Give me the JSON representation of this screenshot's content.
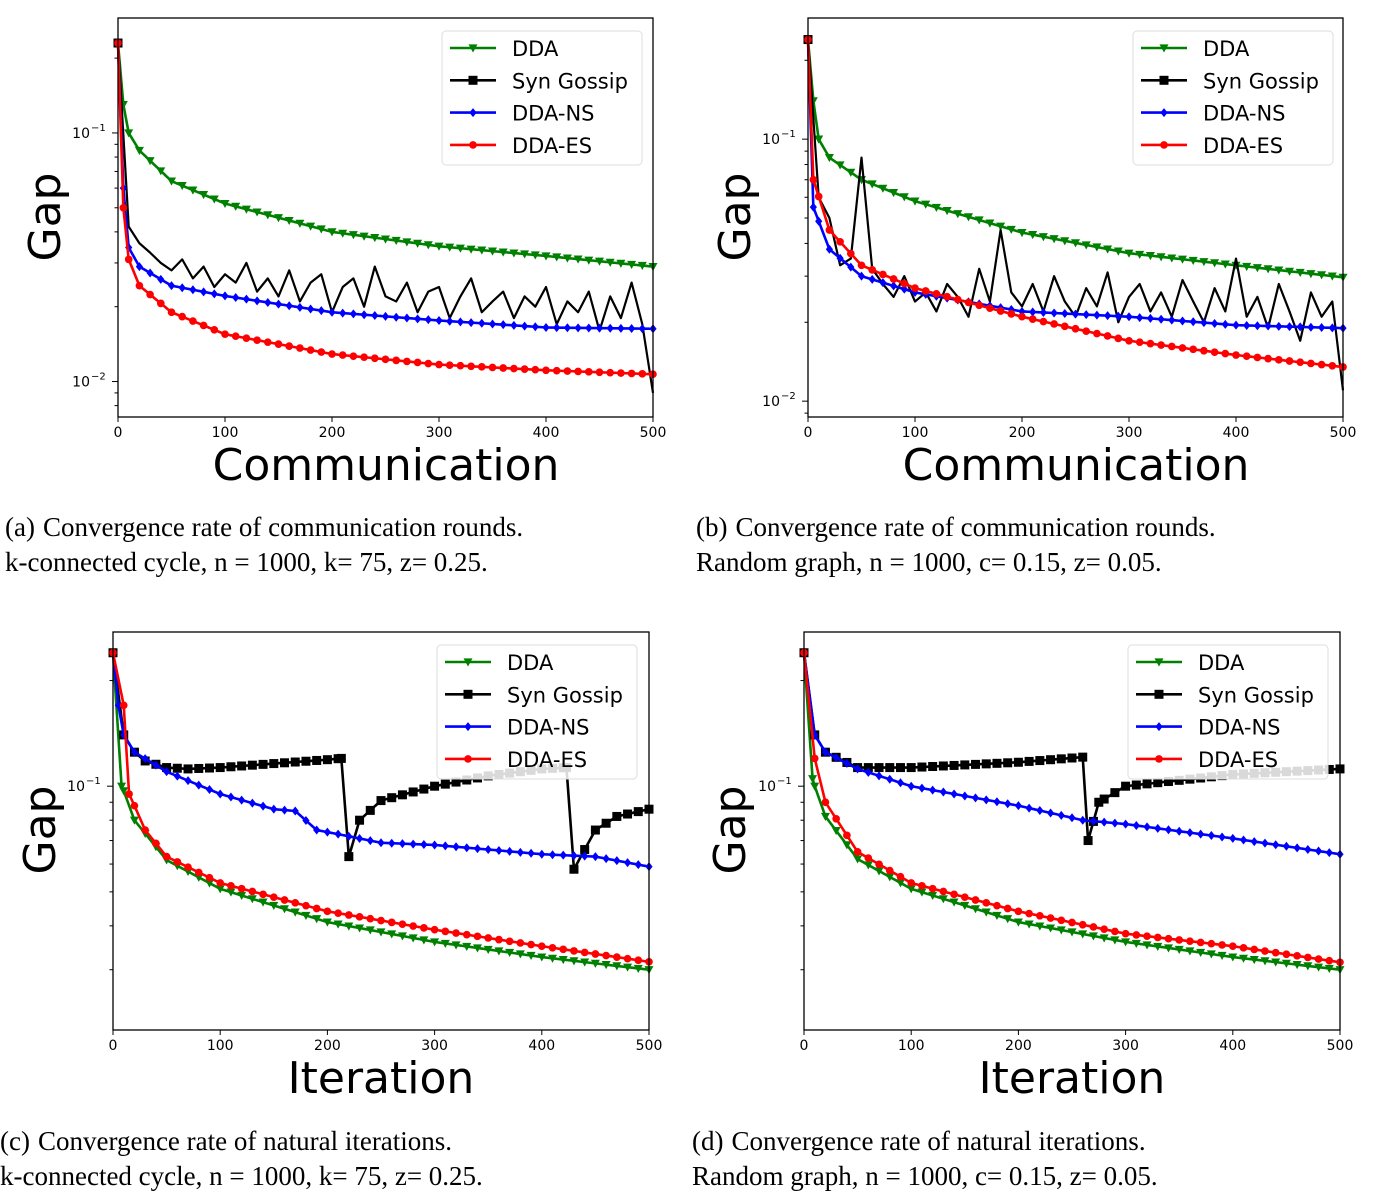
{
  "chart_data": [
    {
      "id": "a",
      "type": "line",
      "xlabel": "Communication",
      "ylabel": "Gap",
      "xlim": [
        0,
        500
      ],
      "ylim": [
        0.0072,
        0.29
      ],
      "yscale": "log",
      "xticks": [
        0,
        100,
        200,
        300,
        400,
        500
      ],
      "yticks": [
        {
          "base": "10",
          "exp": "−1",
          "value": 0.1
        },
        {
          "base": "10",
          "exp": "−2",
          "value": 0.01
        }
      ],
      "grid": false,
      "legend": "top-right",
      "caption": {
        "label": "(a)",
        "line1": "Convergence rate of communication rounds.",
        "line2": "k-connected cycle, n = 1000, k= 75, z= 0.25."
      },
      "series": [
        {
          "name": "DDA",
          "color": "#008000",
          "marker": "triangle-down",
          "x": [
            0,
            5,
            10,
            20,
            50,
            100,
            200,
            300,
            400,
            500
          ],
          "y": [
            0.23,
            0.13,
            0.1,
            0.085,
            0.064,
            0.052,
            0.04,
            0.035,
            0.032,
            0.029
          ]
        },
        {
          "name": "Syn Gossip",
          "color": "#000000",
          "marker": "square",
          "noisy": true,
          "x": [
            0,
            10,
            20,
            30,
            40,
            50,
            60,
            70,
            80,
            90,
            100,
            110,
            120,
            130,
            140,
            150,
            160,
            170,
            180,
            190,
            200,
            210,
            220,
            230,
            240,
            250,
            260,
            270,
            280,
            290,
            300,
            310,
            320,
            330,
            340,
            350,
            360,
            370,
            380,
            390,
            400,
            410,
            420,
            430,
            440,
            450,
            460,
            470,
            480,
            490,
            500
          ],
          "y": [
            0.23,
            0.042,
            0.036,
            0.033,
            0.03,
            0.028,
            0.031,
            0.026,
            0.029,
            0.024,
            0.027,
            0.025,
            0.03,
            0.023,
            0.026,
            0.022,
            0.028,
            0.021,
            0.025,
            0.027,
            0.019,
            0.024,
            0.026,
            0.02,
            0.029,
            0.022,
            0.021,
            0.025,
            0.019,
            0.023,
            0.024,
            0.018,
            0.022,
            0.026,
            0.019,
            0.021,
            0.023,
            0.018,
            0.022,
            0.02,
            0.024,
            0.017,
            0.021,
            0.019,
            0.023,
            0.016,
            0.022,
            0.018,
            0.025,
            0.017,
            0.009
          ]
        },
        {
          "name": "DDA-NS",
          "color": "#0000ff",
          "marker": "diamond",
          "x": [
            0,
            5,
            10,
            20,
            50,
            100,
            200,
            300,
            400,
            500
          ],
          "y": [
            0.23,
            0.06,
            0.0346,
            0.029,
            0.0243,
            0.0221,
            0.019,
            0.0176,
            0.0165,
            0.0163
          ]
        },
        {
          "name": "DDA-ES",
          "color": "#ff0000",
          "marker": "circle",
          "x": [
            0,
            5,
            10,
            20,
            50,
            100,
            200,
            300,
            400,
            500
          ],
          "y": [
            0.23,
            0.05,
            0.031,
            0.0243,
            0.019,
            0.0155,
            0.0129,
            0.0117,
            0.0111,
            0.0107
          ]
        }
      ]
    },
    {
      "id": "b",
      "type": "line",
      "xlabel": "Communication",
      "ylabel": "Gap",
      "xlim": [
        0,
        500
      ],
      "ylim": [
        0.0087,
        0.29
      ],
      "yscale": "log",
      "xticks": [
        0,
        100,
        200,
        300,
        400,
        500
      ],
      "yticks": [
        {
          "base": "10",
          "exp": "−1",
          "value": 0.1
        },
        {
          "base": "10",
          "exp": "−2",
          "value": 0.01
        }
      ],
      "grid": false,
      "legend": "top-right",
      "caption": {
        "label": "(b)",
        "line1": "Convergence rate of communication rounds.",
        "line2": "Random graph, n = 1000, c= 0.15, z= 0.05."
      },
      "series": [
        {
          "name": "DDA",
          "color": "#008000",
          "marker": "triangle-down",
          "x": [
            0,
            5,
            10,
            20,
            50,
            100,
            200,
            300,
            400,
            500
          ],
          "y": [
            0.24,
            0.14,
            0.1,
            0.085,
            0.07,
            0.058,
            0.044,
            0.0367,
            0.033,
            0.0297
          ]
        },
        {
          "name": "Syn Gossip",
          "color": "#000000",
          "marker": "square",
          "noisy": true,
          "x": [
            0,
            10,
            20,
            30,
            40,
            50,
            60,
            70,
            80,
            90,
            100,
            110,
            120,
            130,
            140,
            150,
            160,
            170,
            180,
            190,
            200,
            210,
            220,
            230,
            240,
            250,
            260,
            270,
            280,
            290,
            300,
            310,
            320,
            330,
            340,
            350,
            360,
            370,
            380,
            390,
            400,
            410,
            420,
            430,
            440,
            450,
            460,
            470,
            480,
            490,
            500
          ],
          "y": [
            0.24,
            0.06,
            0.05,
            0.033,
            0.035,
            0.085,
            0.032,
            0.028,
            0.025,
            0.03,
            0.024,
            0.026,
            0.022,
            0.028,
            0.025,
            0.021,
            0.032,
            0.024,
            0.045,
            0.026,
            0.023,
            0.028,
            0.022,
            0.03,
            0.024,
            0.021,
            0.027,
            0.023,
            0.031,
            0.02,
            0.025,
            0.028,
            0.022,
            0.026,
            0.021,
            0.029,
            0.024,
            0.02,
            0.027,
            0.022,
            0.035,
            0.021,
            0.025,
            0.019,
            0.028,
            0.022,
            0.017,
            0.026,
            0.021,
            0.024,
            0.011
          ]
        },
        {
          "name": "DDA-NS",
          "color": "#0000ff",
          "marker": "diamond",
          "x": [
            0,
            5,
            20,
            50,
            100,
            200,
            300,
            400,
            500
          ],
          "y": [
            0.24,
            0.055,
            0.038,
            0.03,
            0.026,
            0.022,
            0.021,
            0.0195,
            0.019
          ]
        },
        {
          "name": "DDA-ES",
          "color": "#ff0000",
          "marker": "circle",
          "x": [
            0,
            5,
            20,
            50,
            100,
            200,
            300,
            400,
            500
          ],
          "y": [
            0.24,
            0.07,
            0.045,
            0.033,
            0.027,
            0.021,
            0.017,
            0.015,
            0.0135
          ]
        }
      ]
    },
    {
      "id": "c",
      "type": "line",
      "xlabel": "Iteration",
      "ylabel": "Gap",
      "xlim": [
        0,
        500
      ],
      "ylim": [
        0.0202,
        0.275
      ],
      "yscale": "log",
      "xticks": [
        0,
        100,
        200,
        300,
        400,
        500
      ],
      "yticks": [
        {
          "base": "10",
          "exp": "−1",
          "value": 0.1
        }
      ],
      "grid": false,
      "legend": "top-right",
      "caption": {
        "label": "(c)",
        "line1": "Convergence rate of natural iterations.",
        "line2": "k-connected cycle, n = 1000, k= 75, z= 0.25."
      },
      "series": [
        {
          "name": "DDA",
          "color": "#008000",
          "marker": "triangle-down",
          "x": [
            0,
            8,
            10,
            20,
            50,
            100,
            200,
            300,
            400,
            500
          ],
          "y": [
            0.24,
            0.1,
            0.097,
            0.08,
            0.0616,
            0.051,
            0.041,
            0.036,
            0.0326,
            0.03
          ]
        },
        {
          "name": "Syn Gossip",
          "color": "#000000",
          "marker": "square",
          "x": [
            0,
            10,
            20,
            30,
            50,
            70,
            100,
            150,
            200,
            213,
            220,
            230,
            250,
            300,
            350,
            400,
            423,
            430,
            440,
            450,
            470,
            500
          ],
          "y": [
            0.24,
            0.14,
            0.125,
            0.118,
            0.113,
            0.112,
            0.113,
            0.116,
            0.119,
            0.12,
            0.063,
            0.08,
            0.091,
            0.1,
            0.107,
            0.112,
            0.113,
            0.058,
            0.066,
            0.075,
            0.082,
            0.086
          ]
        },
        {
          "name": "DDA-NS",
          "color": "#0000ff",
          "marker": "diamond",
          "x": [
            0,
            5,
            10,
            20,
            50,
            100,
            150,
            170,
            190,
            210,
            250,
            300,
            350,
            400,
            450,
            500
          ],
          "y": [
            0.24,
            0.17,
            0.14,
            0.125,
            0.11,
            0.095,
            0.086,
            0.085,
            0.075,
            0.073,
            0.069,
            0.068,
            0.066,
            0.064,
            0.063,
            0.059
          ]
        },
        {
          "name": "DDA-ES",
          "color": "#ff0000",
          "marker": "circle",
          "x": [
            0,
            10,
            15,
            20,
            30,
            50,
            100,
            200,
            300,
            400,
            500
          ],
          "y": [
            0.24,
            0.17,
            0.095,
            0.088,
            0.075,
            0.063,
            0.053,
            0.044,
            0.039,
            0.035,
            0.0316
          ]
        }
      ]
    },
    {
      "id": "d",
      "type": "line",
      "xlabel": "Iteration",
      "ylabel": "Gap",
      "xlim": [
        0,
        500
      ],
      "ylim": [
        0.0202,
        0.275
      ],
      "yscale": "log",
      "xticks": [
        0,
        100,
        200,
        300,
        400,
        500
      ],
      "yticks": [
        {
          "base": "10",
          "exp": "−1",
          "value": 0.1
        }
      ],
      "grid": false,
      "legend": "top-right",
      "caption": {
        "label": "(d)",
        "line1": "Convergence rate of natural iterations.",
        "line2": "Random graph, n = 1000, c= 0.15, z= 0.05."
      },
      "series": [
        {
          "name": "DDA",
          "color": "#008000",
          "marker": "triangle-down",
          "x": [
            0,
            8,
            10,
            20,
            50,
            100,
            200,
            300,
            400,
            500
          ],
          "y": [
            0.24,
            0.105,
            0.1,
            0.082,
            0.062,
            0.051,
            0.041,
            0.036,
            0.0326,
            0.03
          ]
        },
        {
          "name": "Syn Gossip",
          "color": "#000000",
          "marker": "square",
          "x": [
            0,
            10,
            20,
            50,
            100,
            200,
            260,
            265,
            275,
            300,
            400,
            500
          ],
          "y": [
            0.24,
            0.14,
            0.125,
            0.113,
            0.113,
            0.117,
            0.121,
            0.07,
            0.09,
            0.1,
            0.108,
            0.112
          ]
        },
        {
          "name": "DDA-NS",
          "color": "#0000ff",
          "marker": "diamond",
          "x": [
            0,
            10,
            20,
            50,
            100,
            200,
            260,
            300,
            400,
            500
          ],
          "y": [
            0.24,
            0.14,
            0.125,
            0.112,
            0.1,
            0.088,
            0.08,
            0.078,
            0.071,
            0.064
          ]
        },
        {
          "name": "DDA-ES",
          "color": "#ff0000",
          "marker": "circle",
          "x": [
            0,
            10,
            20,
            50,
            100,
            200,
            300,
            400,
            500
          ],
          "y": [
            0.24,
            0.12,
            0.09,
            0.065,
            0.053,
            0.044,
            0.038,
            0.035,
            0.0315
          ]
        }
      ]
    }
  ]
}
